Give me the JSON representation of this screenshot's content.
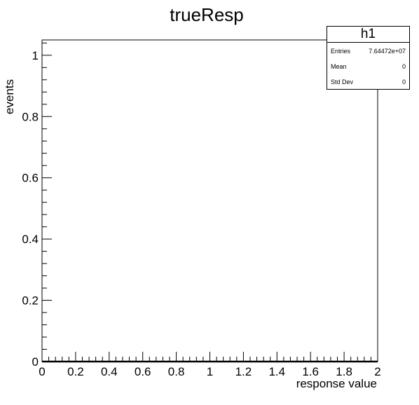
{
  "chart_data": {
    "type": "bar",
    "title": "trueResp",
    "xlabel": "response value",
    "ylabel": "events",
    "xlim": [
      0,
      2
    ],
    "ylim": [
      0,
      1.05
    ],
    "x_ticks": [
      "0",
      "0.2",
      "0.4",
      "0.6",
      "0.8",
      "1",
      "1.2",
      "1.4",
      "1.6",
      "1.8",
      "2"
    ],
    "y_ticks": [
      "0",
      "0.2",
      "0.4",
      "0.6",
      "0.8",
      "1"
    ],
    "series": [
      {
        "values": []
      }
    ],
    "grid": false,
    "legend": "none"
  },
  "stats": {
    "name": "h1",
    "rows": [
      {
        "label": "Entries",
        "value": "7.64472e+07"
      },
      {
        "label": "Mean",
        "value": "0"
      },
      {
        "label": "Std Dev",
        "value": "0"
      }
    ]
  },
  "colors": {
    "axis": "#000000",
    "background": "#ffffff"
  }
}
